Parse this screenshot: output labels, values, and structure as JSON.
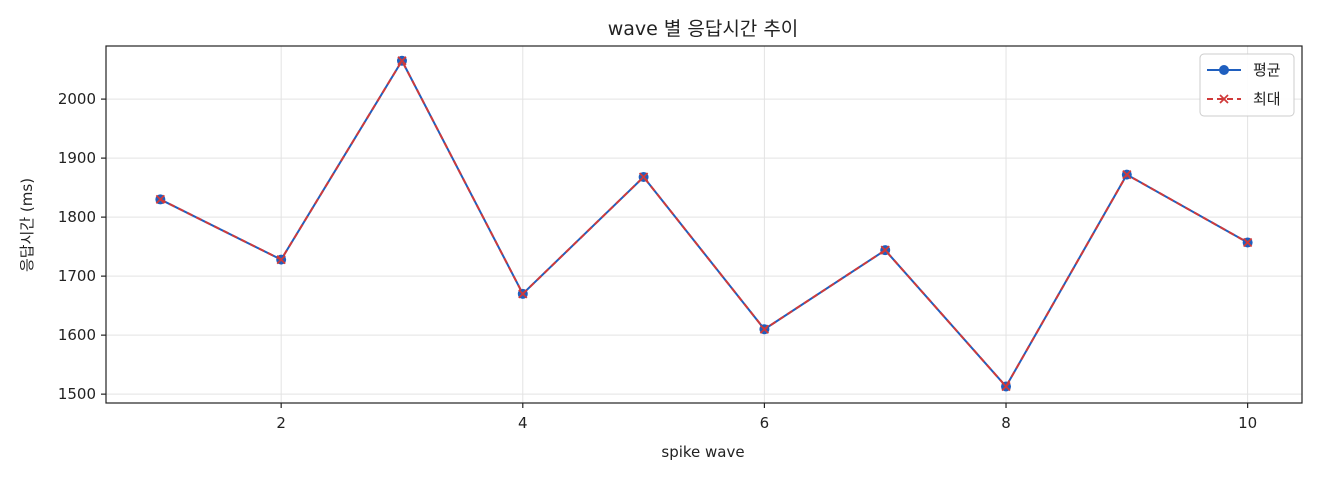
{
  "chart_data": {
    "type": "line",
    "title": "wave 별 응답시간 추이",
    "xlabel": "spike wave",
    "ylabel": "응답시간 (ms)",
    "x": [
      1,
      2,
      3,
      4,
      5,
      6,
      7,
      8,
      9,
      10
    ],
    "xlim": [
      0.55,
      10.45
    ],
    "ylim": [
      1485,
      2090
    ],
    "xticks": [
      2,
      4,
      6,
      8,
      10
    ],
    "yticks": [
      1500,
      1600,
      1700,
      1800,
      1900,
      2000
    ],
    "grid": true,
    "legend_position": "top-right",
    "series": [
      {
        "name": "평균",
        "values": [
          1830,
          1728,
          2065,
          1670,
          1868,
          1610,
          1744,
          1513,
          1872,
          1757
        ],
        "color": "#1f5fbf",
        "marker": "circle",
        "line_style": "solid"
      },
      {
        "name": "최대",
        "values": [
          1830,
          1728,
          2065,
          1670,
          1868,
          1610,
          1744,
          1513,
          1872,
          1757
        ],
        "color": "#d03a3a",
        "marker": "x",
        "line_style": "dashed"
      }
    ]
  }
}
